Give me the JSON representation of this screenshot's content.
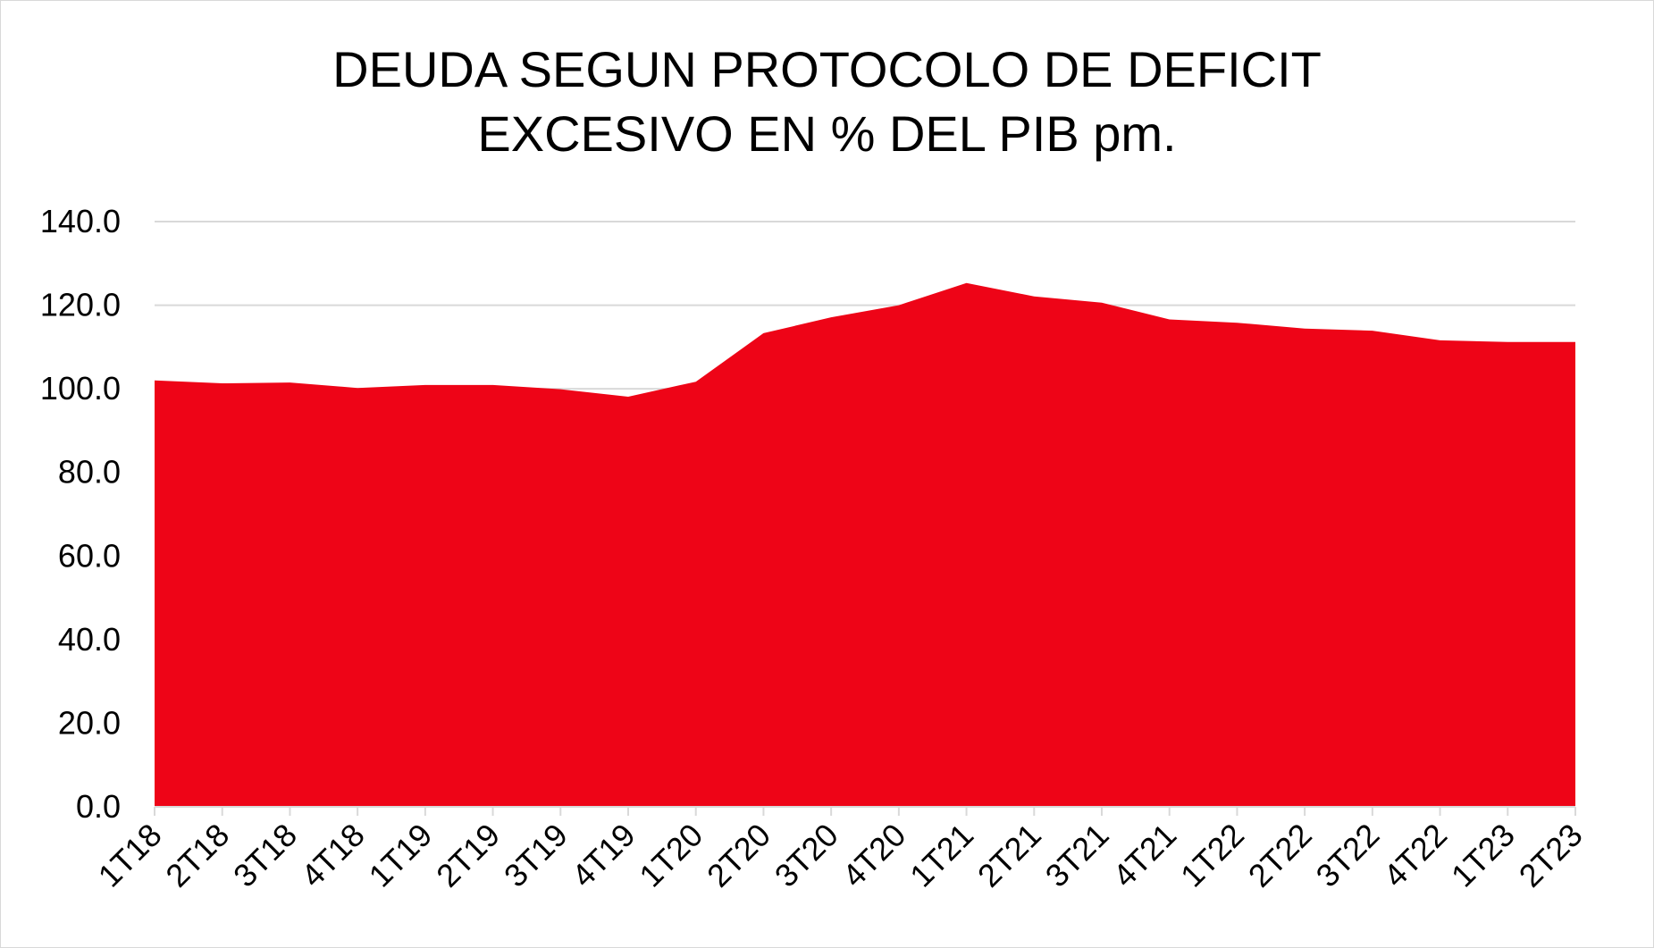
{
  "chart_data": {
    "type": "area",
    "title_lines": [
      "DEUDA SEGUN PROTOCOLO DE DEFICIT",
      "EXCESIVO EN % DEL PIB pm."
    ],
    "xlabel": "",
    "ylabel": "",
    "categories": [
      "1T18",
      "2T18",
      "3T18",
      "4T18",
      "1T19",
      "2T19",
      "3T19",
      "4T19",
      "1T20",
      "2T20",
      "3T20",
      "4T20",
      "1T21",
      "2T21",
      "3T21",
      "4T21",
      "1T22",
      "2T22",
      "3T22",
      "4T22",
      "1T23",
      "2T23"
    ],
    "values": [
      102.0,
      101.3,
      101.5,
      100.2,
      100.9,
      100.9,
      99.9,
      98.1,
      101.7,
      113.3,
      117.1,
      120.0,
      125.3,
      122.1,
      120.6,
      116.6,
      115.8,
      114.4,
      113.9,
      111.6,
      111.2,
      111.2
    ],
    "yticks": [
      "0.0",
      "20.0",
      "40.0",
      "60.0",
      "80.0",
      "100.0",
      "120.0",
      "140.0"
    ],
    "ylim": [
      0,
      140
    ],
    "grid": true,
    "legend": "none",
    "color": "#ee0417"
  }
}
